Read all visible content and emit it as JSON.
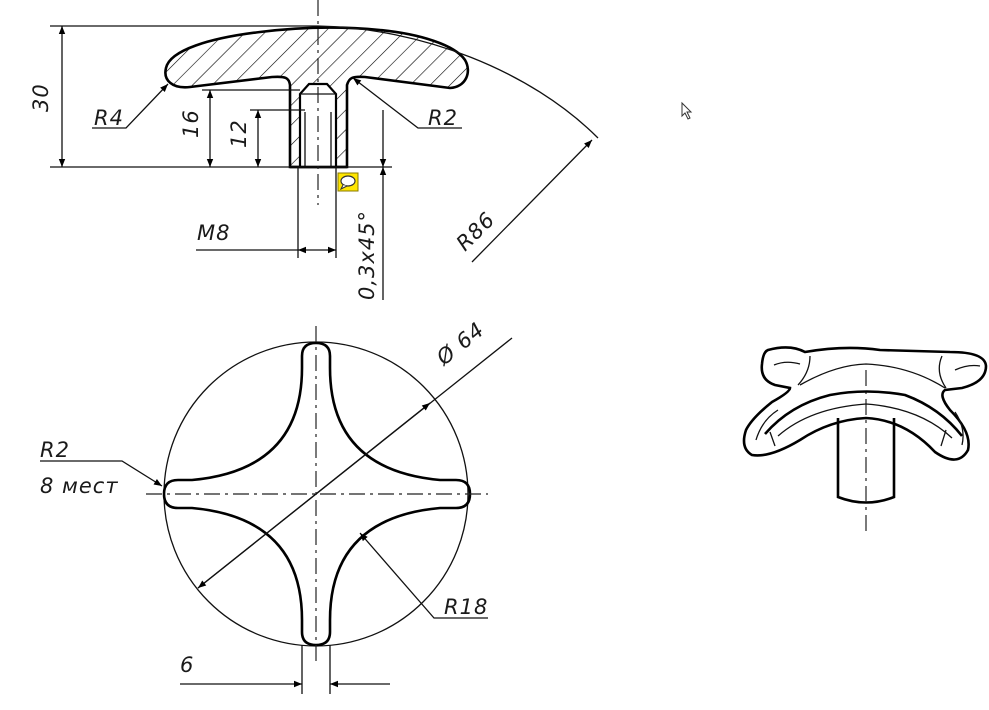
{
  "labels": {
    "r4": "R4",
    "r2_top": "R2",
    "h30": "30",
    "h16": "16",
    "h12": "12",
    "thread": "M8",
    "chamfer": "0,3x45°",
    "r86": "R86",
    "diameter": "Ø 64",
    "r2_left": "R2",
    "places": "8 мест",
    "r18": "R18",
    "width6": "6"
  },
  "colors": {
    "line": "#000000",
    "background": "#ffffff",
    "note_icon": "#ffe600"
  }
}
